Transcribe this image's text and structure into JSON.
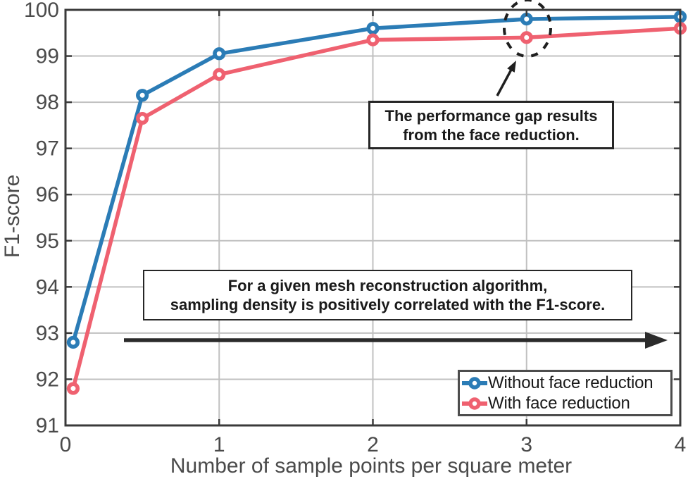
{
  "chart_data": {
    "type": "line",
    "x": [
      0.05,
      0.5,
      1,
      2,
      3,
      4
    ],
    "series": [
      {
        "name": "Without face reduction",
        "color": "#2b7cb6",
        "values": [
          92.8,
          98.15,
          99.05,
          99.6,
          99.8,
          99.85
        ]
      },
      {
        "name": "With face reduction",
        "color": "#ef6170",
        "values": [
          91.8,
          97.65,
          98.6,
          99.35,
          99.4,
          99.6
        ]
      }
    ],
    "title": "",
    "xlabel": "Number of sample points per square meter",
    "ylabel": "F1-score",
    "xlim": [
      0,
      4
    ],
    "ylim": [
      91,
      100
    ],
    "xticks": [
      0,
      1,
      2,
      3,
      4
    ],
    "yticks": [
      91,
      92,
      93,
      94,
      95,
      96,
      97,
      98,
      99,
      100
    ],
    "grid": true,
    "legend_position": "lower right",
    "highlighted_x": 3
  },
  "annotations": {
    "gap_note_line1": "The performance gap results",
    "gap_note_line2": "from the face reduction.",
    "density_note_line1": "For a given mesh reconstruction algorithm,",
    "density_note_line2": "sampling density is positively correlated with the F1-score."
  },
  "legend": {
    "items": [
      {
        "label": "Without face reduction",
        "color": "#2b7cb6"
      },
      {
        "label": "With face reduction",
        "color": "#ef6170"
      }
    ]
  },
  "colors": {
    "blue_series": "#2b7cb6",
    "red_series": "#ef6170",
    "grid": "#c0c0c0",
    "spine": "#3a3a3a",
    "tick_text": "#4a4a4a",
    "annotation_ink": "#1f1f1f"
  }
}
